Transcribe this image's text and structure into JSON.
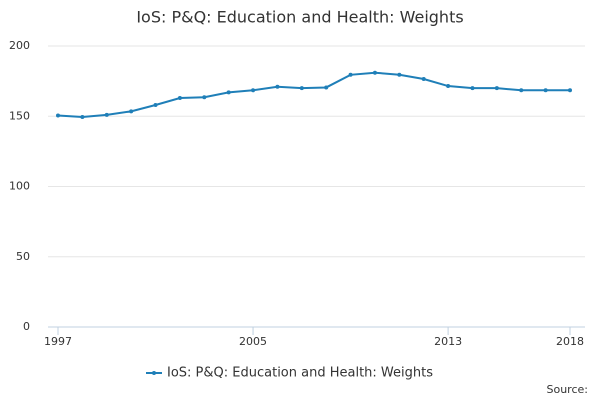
{
  "chart_data": {
    "type": "line",
    "title": "IoS: P&Q: Education and Health: Weights",
    "x": [
      1997,
      1998,
      1999,
      2000,
      2001,
      2002,
      2003,
      2004,
      2005,
      2006,
      2007,
      2008,
      2009,
      2010,
      2011,
      2012,
      2013,
      2014,
      2015,
      2016,
      2017,
      2018
    ],
    "series": [
      {
        "name": "IoS: P&Q: Education and Health: Weights",
        "color": "#1f7fb8",
        "values": [
          150.5,
          149.5,
          151,
          153.5,
          158,
          163,
          163.5,
          167,
          168.5,
          171,
          170,
          170.5,
          179.5,
          181,
          179.5,
          176.5,
          171.5,
          170,
          170,
          168.5,
          168.5,
          168.5
        ]
      }
    ],
    "xlim": [
      1997,
      2018
    ],
    "xticks": [
      1997,
      2005,
      2013,
      2018
    ],
    "ylim": [
      0,
      200
    ],
    "yticks": [
      0,
      50,
      100,
      150,
      200
    ],
    "grid": true,
    "legend": "bottom",
    "source": "Source:"
  }
}
